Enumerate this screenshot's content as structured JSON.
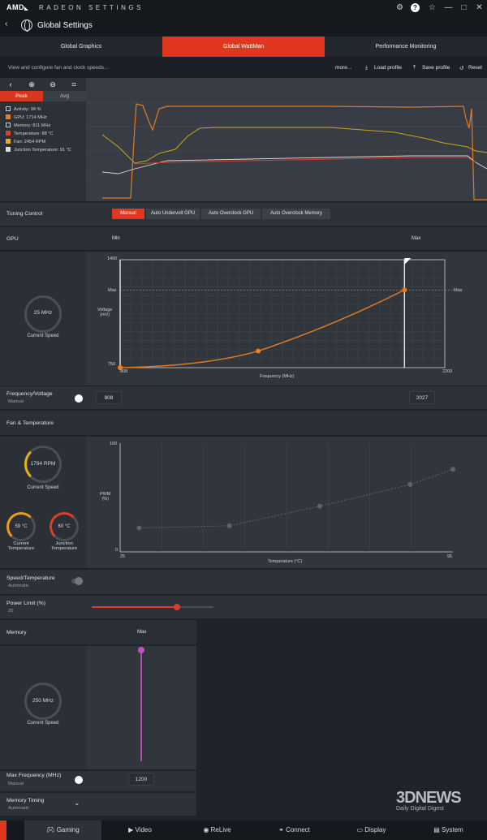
{
  "app": {
    "brand": "AMD",
    "brand_arrow": "◣",
    "product": "RADEON SETTINGS",
    "page_title": "Global Settings",
    "back_icon": "‹"
  },
  "window": {
    "icons": [
      "gear-icon",
      "help-icon",
      "star-icon"
    ],
    "min": "—",
    "max": "□",
    "close": "✕"
  },
  "tabs": [
    "Global Graphics",
    "Global WattMan",
    "Performance Monitoring"
  ],
  "subbar": {
    "description": "View and configure fan and clock speeds...",
    "more": "more...",
    "load": "Load profile",
    "save": "Save profile",
    "reset": "Reset"
  },
  "monitor": {
    "peak": "Peak",
    "avg": "Avg",
    "legend": [
      {
        "label": "Activity: 99 %",
        "color": "#2c3138",
        "checked": false
      },
      {
        "label": "GPU: 1714 MHz",
        "color": "#e67e22",
        "checked": true
      },
      {
        "label": "Memory: 811 MHz",
        "color": "#2c3138",
        "checked": false
      },
      {
        "label": "Temperature: 88 °C",
        "color": "#e03c2a",
        "checked": true
      },
      {
        "label": "Fan: 2454 RPM",
        "color": "#e8b010",
        "checked": true
      },
      {
        "label": "Junction Temperature: 91 °C",
        "color": "#dcdcdc",
        "checked": true
      }
    ]
  },
  "tuning": {
    "label": "Tuning Control",
    "options": [
      "Manual",
      "Auto Undervolt GPU",
      "Auto Overclock GPU",
      "Auto Overclock Memory"
    ],
    "selected": "Manual"
  },
  "gpu": {
    "label": "GPU",
    "min": "Min",
    "max": "Max",
    "speed": "25 MHz",
    "speed_label": "Current Speed",
    "chart_data": {
      "type": "line",
      "xlabel": "Frequency (MHz)",
      "ylabel": "Voltage\n(mV)",
      "x_min_label": "808",
      "x_max_label": "2200",
      "y_max_label": "1400",
      "y_min_label": "750",
      "y_marker": "1218",
      "y_marker_label": "Max",
      "xlim": [
        808,
        2200
      ],
      "ylim": [
        750,
        1400
      ],
      "points": [
        {
          "x": 808,
          "y": 750
        },
        {
          "x": 1400,
          "y": 850
        },
        {
          "x": 2027,
          "y": 1218
        }
      ]
    },
    "freq_voltage_label": "Frequency/Voltage",
    "freq_voltage_mode": "Manual",
    "min_value": "808",
    "max_value": "2027"
  },
  "fan": {
    "label": "Fan & Temperature",
    "fan_speed": "1794 RPM",
    "fan_label": "Current Speed",
    "temp": "59 °C",
    "temp_label": "Current\nTemperature",
    "junction": "60 °C",
    "junction_label": "Junction\nTemperature",
    "chart_data": {
      "type": "line",
      "xlabel": "Temperature (°C)",
      "ylabel": "PWM\n(%)",
      "x_min_label": "25",
      "x_max_label": "95",
      "y_max_label": "100",
      "y_min_label": "0",
      "xlim": [
        25,
        95
      ],
      "ylim": [
        0,
        100
      ],
      "points": [
        {
          "x": 29,
          "y": 22
        },
        {
          "x": 48,
          "y": 24
        },
        {
          "x": 67,
          "y": 42
        },
        {
          "x": 86,
          "y": 62
        },
        {
          "x": 95,
          "y": 76
        }
      ]
    },
    "speed_temp_label": "Speed/Temperature",
    "speed_temp_mode": "Automatic",
    "power_label": "Power Limit (%)",
    "power_value": "20",
    "power_fraction": 0.7
  },
  "memory": {
    "label": "Memory",
    "max": "Max",
    "speed": "250 MHz",
    "speed_label": "Current Speed",
    "max_freq_label": "Max Frequency (MHz)",
    "max_freq_mode": "Manual",
    "max_freq_value": "1200",
    "timing_label": "Memory Timing",
    "timing_mode": "Automatic"
  },
  "nav": [
    {
      "label": "Gaming",
      "icon": "gamepad-icon"
    },
    {
      "label": "Video",
      "icon": "play-icon"
    },
    {
      "label": "ReLive",
      "icon": "relive-icon"
    },
    {
      "label": "Connect",
      "icon": "connect-icon"
    },
    {
      "label": "Display",
      "icon": "display-icon"
    },
    {
      "label": "System",
      "icon": "system-icon"
    }
  ],
  "watermark": {
    "logo": "3DNEWS",
    "tagline": "Daily Digital Digest"
  }
}
